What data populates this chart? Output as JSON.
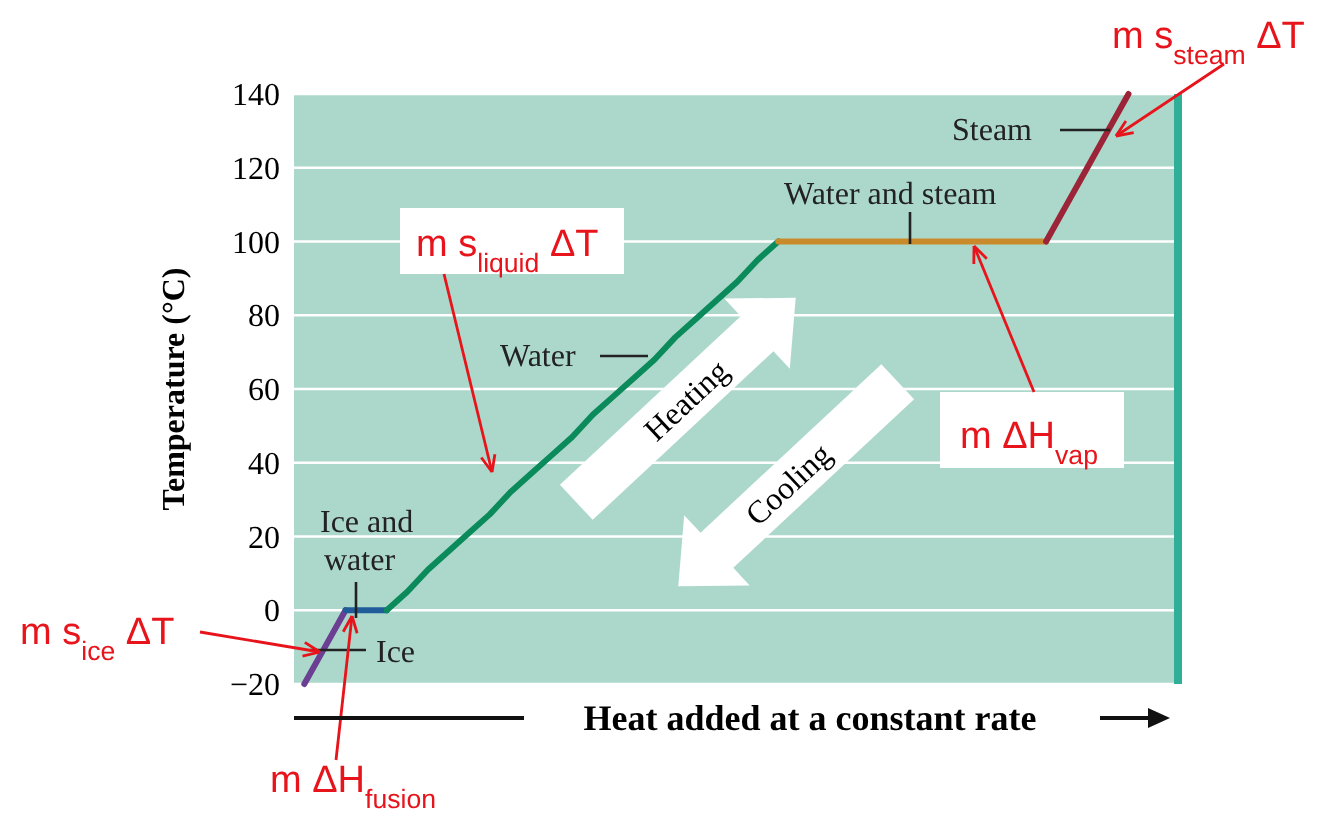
{
  "chart_data": {
    "type": "line",
    "ylabel": "Temperature (°C)",
    "xlabel": "Heat added at a constant rate",
    "categories": [
      null,
      null,
      null,
      null,
      null,
      null,
      null,
      null,
      null,
      null,
      null,
      null,
      null,
      null,
      null,
      null,
      null,
      null,
      null,
      null,
      null,
      null,
      null,
      null,
      null,
      null,
      null,
      null,
      null,
      null,
      null,
      null,
      null,
      null,
      null,
      null,
      null,
      null,
      null,
      null,
      null,
      null,
      null
    ],
    "ylim": [
      -20,
      140
    ],
    "yticks": [
      -20,
      0,
      20,
      40,
      60,
      80,
      100,
      120,
      140
    ],
    "tick_labels": "y",
    "grid": "y",
    "legend": false,
    "marker": "none",
    "line_style": "solid",
    "series": [
      {
        "name": "Ice",
        "color": "#6b3f92",
        "values": [
          -20,
          -10,
          0,
          null,
          null,
          null,
          null,
          null,
          null,
          null,
          null,
          null,
          null,
          null,
          null,
          null,
          null,
          null,
          null,
          null,
          null,
          null,
          null,
          null,
          null,
          null,
          null,
          null,
          null,
          null,
          null,
          null,
          null,
          null,
          null,
          null,
          null,
          null,
          null,
          null,
          null,
          null,
          null
        ]
      },
      {
        "name": "Ice and water",
        "color": "#1f5c99",
        "values": [
          null,
          null,
          0,
          0,
          0,
          null,
          null,
          null,
          null,
          null,
          null,
          null,
          null,
          null,
          null,
          null,
          null,
          null,
          null,
          null,
          null,
          null,
          null,
          null,
          null,
          null,
          null,
          null,
          null,
          null,
          null,
          null,
          null,
          null,
          null,
          null,
          null,
          null,
          null,
          null,
          null,
          null,
          null
        ]
      },
      {
        "name": "Water",
        "color": "#0b8a5c",
        "values": [
          null,
          null,
          null,
          null,
          0,
          5,
          11,
          16,
          21,
          26,
          32,
          37,
          42,
          47,
          53,
          58,
          63,
          68,
          74,
          79,
          84,
          89,
          95,
          100,
          null,
          null,
          null,
          null,
          null,
          null,
          null,
          null,
          null,
          null,
          null,
          null,
          null,
          null,
          null,
          null,
          null,
          null,
          null
        ]
      },
      {
        "name": "Water and steam",
        "color": "#c98a2c",
        "values": [
          null,
          null,
          null,
          null,
          null,
          null,
          null,
          null,
          null,
          null,
          null,
          null,
          null,
          null,
          null,
          null,
          null,
          null,
          null,
          null,
          null,
          null,
          null,
          100,
          100,
          100,
          100,
          100,
          100,
          100,
          100,
          100,
          100,
          100,
          100,
          100,
          100,
          null,
          null,
          null,
          null,
          null,
          null
        ]
      },
      {
        "name": "Steam",
        "color": "#9b2438",
        "values": [
          null,
          null,
          null,
          null,
          null,
          null,
          null,
          null,
          null,
          null,
          null,
          null,
          null,
          null,
          null,
          null,
          null,
          null,
          null,
          null,
          null,
          null,
          null,
          null,
          null,
          null,
          null,
          null,
          null,
          null,
          null,
          null,
          null,
          null,
          null,
          null,
          100,
          110,
          120,
          130,
          140,
          null,
          null
        ]
      }
    ],
    "annotations": [
      "m s$_{ice}$ ΔT",
      "m ΔH$_{fusion}$",
      "m s$_{liquid}$ ΔT",
      "m ΔH$_{vap}$",
      "m s$_{steam}$ ΔT",
      "Heating",
      "Cooling"
    ]
  }
}
